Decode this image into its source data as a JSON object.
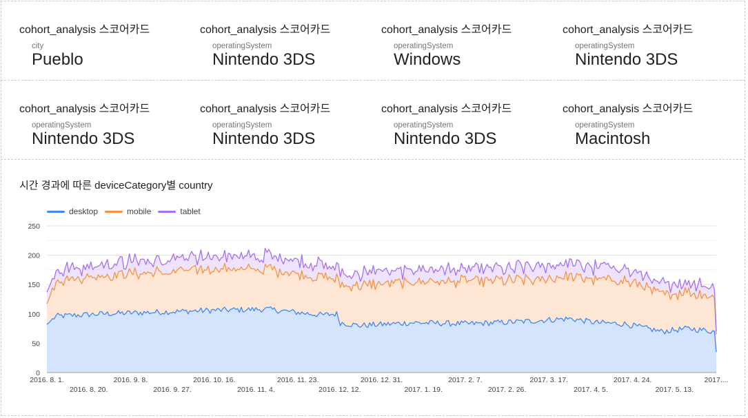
{
  "scorecards": [
    {
      "title": "cohort_analysis 스코어카드",
      "label": "city",
      "value": "Pueblo"
    },
    {
      "title": "cohort_analysis 스코어카드",
      "label": "operatingSystem",
      "value": "Nintendo 3DS"
    },
    {
      "title": "cohort_analysis 스코어카드",
      "label": "operatingSystem",
      "value": "Windows"
    },
    {
      "title": "cohort_analysis 스코어카드",
      "label": "operatingSystem",
      "value": "Nintendo 3DS"
    },
    {
      "title": "cohort_analysis 스코어카드",
      "label": "operatingSystem",
      "value": "Nintendo 3DS"
    },
    {
      "title": "cohort_analysis 스코어카드",
      "label": "operatingSystem",
      "value": "Nintendo 3DS"
    },
    {
      "title": "cohort_analysis 스코어카드",
      "label": "operatingSystem",
      "value": "Nintendo 3DS"
    },
    {
      "title": "cohort_analysis 스코어카드",
      "label": "operatingSystem",
      "value": "Macintosh"
    }
  ],
  "chart_data": {
    "type": "area",
    "title": "시간 경과에 따른 deviceCategory별 country",
    "stacked": true,
    "legend_position": "top-left",
    "grid": true,
    "ylim": [
      0,
      250
    ],
    "y_ticks": [
      "0",
      "50",
      "100",
      "150",
      "200",
      "250"
    ],
    "x_ticks_top": [
      "2016. 8. 1.",
      "2016. 9. 8.",
      "2016. 10. 16.",
      "2016. 11. 23.",
      "2016. 12. 31.",
      "2017. 2. 7.",
      "2017. 3. 17.",
      "2017. 4. 24.",
      "2017...."
    ],
    "x_ticks_bottom": [
      "2016. 8. 20.",
      "2016. 9. 27.",
      "2016. 11. 4.",
      "2016. 12. 12.",
      "2017. 1. 19.",
      "2017. 2. 26.",
      "2017. 4. 5.",
      "2017. 5. 13."
    ],
    "x_range": [
      "2016-08-01",
      "2017-06-01"
    ],
    "series": [
      {
        "name": "desktop",
        "color": "#4285f4",
        "fill": "#d2e3fc",
        "keypoints": [
          [
            0,
            82
          ],
          [
            5,
            96
          ],
          [
            30,
            100
          ],
          [
            60,
            103
          ],
          [
            90,
            106
          ],
          [
            120,
            108
          ],
          [
            150,
            98
          ],
          [
            158,
            100
          ],
          [
            160,
            85
          ],
          [
            170,
            80
          ],
          [
            200,
            85
          ],
          [
            230,
            83
          ],
          [
            260,
            87
          ],
          [
            285,
            92
          ],
          [
            300,
            85
          ],
          [
            315,
            83
          ],
          [
            335,
            70
          ],
          [
            350,
            75
          ],
          [
            364,
            70
          ],
          [
            365,
            35
          ]
        ]
      },
      {
        "name": "mobile",
        "color": "#fa903e",
        "fill": "#fde5d1",
        "keypoints": [
          [
            0,
            35
          ],
          [
            5,
            60
          ],
          [
            30,
            65
          ],
          [
            60,
            68
          ],
          [
            90,
            70
          ],
          [
            120,
            68
          ],
          [
            150,
            64
          ],
          [
            158,
            60
          ],
          [
            160,
            67
          ],
          [
            200,
            70
          ],
          [
            230,
            72
          ],
          [
            260,
            70
          ],
          [
            285,
            72
          ],
          [
            300,
            72
          ],
          [
            315,
            75
          ],
          [
            330,
            65
          ],
          [
            345,
            62
          ],
          [
            364,
            60
          ],
          [
            365,
            30
          ]
        ]
      },
      {
        "name": "tablet",
        "color": "#a56ff0",
        "fill": "#ede2fc",
        "keypoints": [
          [
            0,
            20
          ],
          [
            5,
            18
          ],
          [
            30,
            20
          ],
          [
            60,
            22
          ],
          [
            90,
            22
          ],
          [
            120,
            22
          ],
          [
            150,
            22
          ],
          [
            180,
            20
          ],
          [
            230,
            20
          ],
          [
            260,
            22
          ],
          [
            300,
            22
          ],
          [
            320,
            20
          ],
          [
            340,
            17
          ],
          [
            364,
            15
          ],
          [
            365,
            5
          ]
        ]
      }
    ]
  }
}
